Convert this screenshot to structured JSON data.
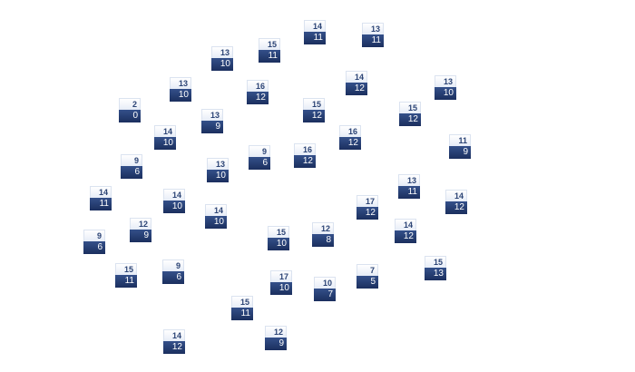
{
  "nodes": [
    {
      "top": "14",
      "bottom": "11"
    },
    {
      "top": "13",
      "bottom": "11"
    },
    {
      "top": "13",
      "bottom": "10"
    },
    {
      "top": "15",
      "bottom": "11"
    },
    {
      "top": "14",
      "bottom": "12"
    },
    {
      "top": "13",
      "bottom": "10"
    },
    {
      "top": "13",
      "bottom": "10"
    },
    {
      "top": "16",
      "bottom": "12"
    },
    {
      "top": "15",
      "bottom": "12"
    },
    {
      "top": "15",
      "bottom": "12"
    },
    {
      "top": "2",
      "bottom": "0"
    },
    {
      "top": "13",
      "bottom": "9"
    },
    {
      "top": "14",
      "bottom": "10"
    },
    {
      "top": "16",
      "bottom": "12"
    },
    {
      "top": "11",
      "bottom": "9"
    },
    {
      "top": "9",
      "bottom": "6"
    },
    {
      "top": "16",
      "bottom": "12"
    },
    {
      "top": "9",
      "bottom": "6"
    },
    {
      "top": "13",
      "bottom": "10"
    },
    {
      "top": "13",
      "bottom": "11"
    },
    {
      "top": "14",
      "bottom": "11"
    },
    {
      "top": "14",
      "bottom": "10"
    },
    {
      "top": "17",
      "bottom": "12"
    },
    {
      "top": "14",
      "bottom": "12"
    },
    {
      "top": "14",
      "bottom": "10"
    },
    {
      "top": "12",
      "bottom": "9"
    },
    {
      "top": "12",
      "bottom": "8"
    },
    {
      "top": "14",
      "bottom": "12"
    },
    {
      "top": "15",
      "bottom": "10"
    },
    {
      "top": "9",
      "bottom": "6"
    },
    {
      "top": "15",
      "bottom": "13"
    },
    {
      "top": "15",
      "bottom": "11"
    },
    {
      "top": "9",
      "bottom": "6"
    },
    {
      "top": "7",
      "bottom": "5"
    },
    {
      "top": "17",
      "bottom": "10"
    },
    {
      "top": "10",
      "bottom": "7"
    },
    {
      "top": "15",
      "bottom": "11"
    },
    {
      "top": "12",
      "bottom": "9"
    },
    {
      "top": "14",
      "bottom": "12"
    }
  ],
  "colors": {
    "header_bg": "#eef2fa",
    "header_text": "#2c4475",
    "value_bg": "#253d70",
    "value_text": "#ffffff"
  }
}
